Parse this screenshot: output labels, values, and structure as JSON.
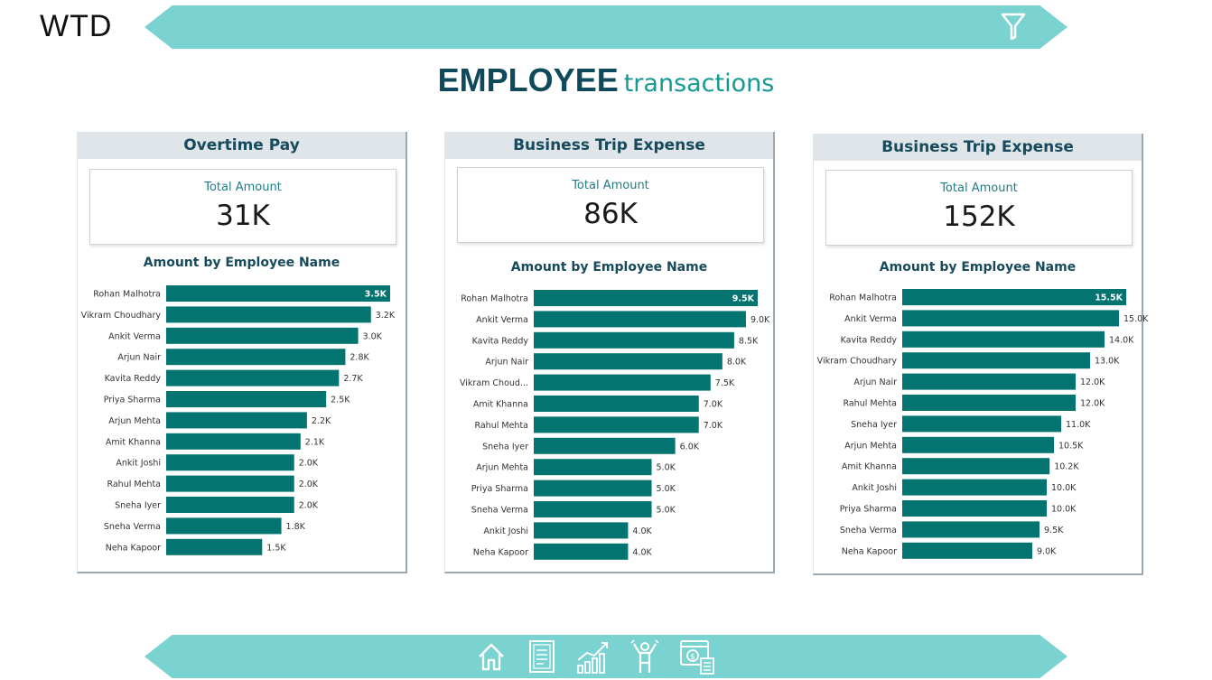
{
  "brand": {
    "logo": "WTD"
  },
  "header": {
    "filter_icon": "filter-icon"
  },
  "title": {
    "main": "EMPLOYEE",
    "sub": "transactions"
  },
  "colors": {
    "bar": "#047470",
    "ribbon": "#7ad3d1",
    "title": "#0f4a5c",
    "accent": "#149a93"
  },
  "cards": [
    {
      "title": "Overtime Pay",
      "kpi_label": "Total Amount",
      "kpi_value": "31K",
      "chart_title": "Amount by Employee Name",
      "chart_data": {
        "type": "bar",
        "orientation": "horizontal",
        "title": "Amount by Employee Name",
        "categories": [
          "Rohan Malhotra",
          "Vikram Choudhary",
          "Ankit Verma",
          "Arjun Nair",
          "Kavita Reddy",
          "Priya Sharma",
          "Arjun Mehta",
          "Amit Khanna",
          "Ankit Joshi",
          "Rahul Mehta",
          "Sneha Iyer",
          "Sneha Verma",
          "Neha Kapoor"
        ],
        "values": [
          3500,
          3200,
          3000,
          2800,
          2700,
          2500,
          2200,
          2100,
          2000,
          2000,
          2000,
          1800,
          1500
        ],
        "labels": [
          "3.5K",
          "3.2K",
          "3.0K",
          "2.8K",
          "2.7K",
          "2.5K",
          "2.2K",
          "2.1K",
          "2.0K",
          "2.0K",
          "2.0K",
          "1.8K",
          "1.5K"
        ],
        "xlim": [
          0,
          3500
        ]
      }
    },
    {
      "title": "Business Trip Expense",
      "kpi_label": "Total Amount",
      "kpi_value": "86K",
      "chart_title": "Amount by Employee Name",
      "chart_data": {
        "type": "bar",
        "orientation": "horizontal",
        "title": "Amount by Employee Name",
        "categories": [
          "Rohan Malhotra",
          "Ankit Verma",
          "Kavita Reddy",
          "Arjun Nair",
          "Vikram Choud...",
          "Amit Khanna",
          "Rahul Mehta",
          "Sneha Iyer",
          "Arjun Mehta",
          "Priya Sharma",
          "Sneha Verma",
          "Ankit Joshi",
          "Neha Kapoor"
        ],
        "values": [
          9500,
          9000,
          8500,
          8000,
          7500,
          7000,
          7000,
          6000,
          5000,
          5000,
          5000,
          4000,
          4000
        ],
        "labels": [
          "9.5K",
          "9.0K",
          "8.5K",
          "8.0K",
          "7.5K",
          "7.0K",
          "7.0K",
          "6.0K",
          "5.0K",
          "5.0K",
          "5.0K",
          "4.0K",
          "4.0K"
        ],
        "xlim": [
          0,
          9500
        ]
      }
    },
    {
      "title": "Business Trip Expense",
      "kpi_label": "Total Amount",
      "kpi_value": "152K",
      "chart_title": "Amount by Employee Name",
      "chart_data": {
        "type": "bar",
        "orientation": "horizontal",
        "title": "Amount by Employee Name",
        "categories": [
          "Rohan Malhotra",
          "Ankit Verma",
          "Kavita Reddy",
          "Vikram Choudhary",
          "Arjun Nair",
          "Rahul Mehta",
          "Sneha Iyer",
          "Arjun Mehta",
          "Amit Khanna",
          "Ankit Joshi",
          "Priya Sharma",
          "Sneha Verma",
          "Neha Kapoor"
        ],
        "values": [
          15500,
          15000,
          14000,
          13000,
          12000,
          12000,
          11000,
          10500,
          10200,
          10000,
          10000,
          9500,
          9000
        ],
        "labels": [
          "15.5K",
          "15.0K",
          "14.0K",
          "13.0K",
          "12.0K",
          "12.0K",
          "11.0K",
          "10.5K",
          "10.2K",
          "10.0K",
          "10.0K",
          "9.5K",
          "9.0K"
        ],
        "xlim": [
          0,
          15500
        ]
      }
    }
  ],
  "bottom_nav": [
    "home-icon",
    "report-icon",
    "trend-chart-icon",
    "employee-icon",
    "expense-calculator-icon"
  ]
}
